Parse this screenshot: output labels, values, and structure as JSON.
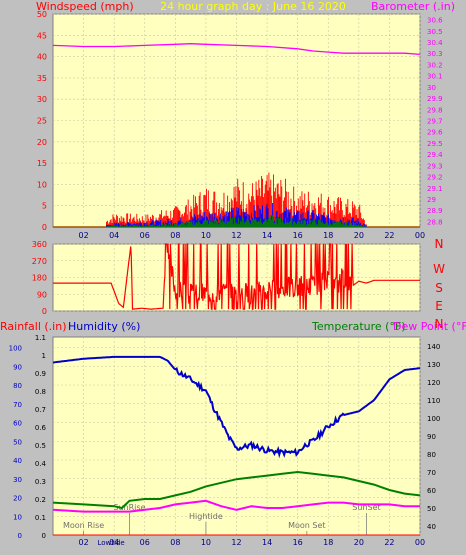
{
  "title": "24 hour graph day : June 16 2020",
  "colors": {
    "background": "#c0c0c0",
    "plot_bg": "#ffffc0",
    "grid": "#c8c8a0",
    "wind_avg": "#ff0000",
    "wind_mid": "#0000ff",
    "wind_low": "#008000",
    "barometer": "#ff00ff",
    "direction": "#ff0000",
    "humidity": "#0000c8",
    "temperature": "#008000",
    "dewpoint": "#ff00ff",
    "rain": "#ff0000",
    "markers": "#808080"
  },
  "chart_data": [
    {
      "type": "line",
      "name": "wind-barometer",
      "left_label": "Windspeed (mph)",
      "right_label": "Barometer (.in)",
      "x_ticks": [
        "02",
        "04",
        "06",
        "08",
        "10",
        "12",
        "14",
        "16",
        "18",
        "20",
        "22",
        "00"
      ],
      "y_left_ticks": [
        "0",
        "5",
        "10",
        "15",
        "20",
        "25",
        "30",
        "35",
        "40",
        "45",
        "50"
      ],
      "y_left_range": [
        0,
        50
      ],
      "y_right_ticks": [
        "28.8",
        "28.9",
        "29",
        "29.1",
        "29.2",
        "29.3",
        "29.4",
        "29.5",
        "29.6",
        "29.7",
        "29.8",
        "29.9",
        "30",
        "30.1",
        "30.2",
        "30.3",
        "30.4",
        "30.5",
        "30.6"
      ],
      "y_right_range": [
        28.75,
        30.65
      ],
      "barometer": {
        "x": [
          0,
          2,
          4,
          6,
          8,
          9,
          10,
          12,
          14,
          16,
          17,
          18,
          19,
          20,
          22,
          23,
          24
        ],
        "y": [
          30.37,
          30.36,
          30.36,
          30.37,
          30.38,
          30.385,
          30.38,
          30.37,
          30.36,
          30.34,
          30.32,
          30.31,
          30.3,
          30.3,
          30.3,
          30.3,
          30.29
        ]
      },
      "wind_envelope": {
        "x": [
          3.5,
          4,
          6,
          8,
          9,
          10,
          11,
          12,
          13,
          14,
          15,
          16,
          17,
          18,
          19,
          20,
          20.5
        ],
        "gust_max": [
          2,
          3.5,
          3,
          5,
          7,
          10,
          9,
          12,
          11,
          13,
          12,
          9,
          9,
          8,
          7,
          6,
          1
        ],
        "mid_max": [
          0.5,
          1,
          1.5,
          2,
          3,
          4,
          4,
          5,
          5,
          6,
          5,
          4,
          4,
          3,
          3,
          2,
          0.5
        ],
        "low_max": [
          0.2,
          0.4,
          0.6,
          1,
          1.5,
          2,
          2,
          2.5,
          2.5,
          3,
          2.5,
          2,
          2,
          1.5,
          1.5,
          1,
          0.2
        ]
      }
    },
    {
      "type": "line",
      "name": "wind-direction",
      "left_ticks": [
        "360",
        "270",
        "180",
        "90",
        "0"
      ],
      "y_range": [
        0,
        360
      ],
      "right_labels": [
        "N",
        "W",
        "S",
        "E",
        "N"
      ],
      "series": {
        "x": [
          0,
          1,
          2,
          3,
          3.8,
          4.3,
          4.6,
          5.1,
          5.2,
          5.8,
          6.4,
          7.2,
          7.4,
          8,
          9,
          10,
          11,
          12,
          13,
          14,
          15,
          16,
          17,
          18,
          18.6,
          19,
          19.5,
          20,
          20.5,
          21,
          22,
          23,
          24
        ],
        "y": [
          150,
          150,
          150,
          150,
          150,
          40,
          20,
          360,
          10,
          15,
          10,
          15,
          360,
          120,
          90,
          100,
          110,
          100,
          95,
          110,
          130,
          130,
          140,
          160,
          140,
          190,
          130,
          160,
          150,
          165,
          165,
          165,
          165
        ]
      }
    },
    {
      "type": "line",
      "name": "climate",
      "left_outer_label": "Rainfall (.in)",
      "left_inner_label": "Humidity (%)",
      "right_label_temp": "Temperature (°F)",
      "right_label_dew": "Dew Point (°F)",
      "rain_ticks": [
        "0",
        "0.1",
        "0.2",
        "0.3",
        "0.4",
        "0.5",
        "0.6",
        "0.7",
        "0.8",
        "0.9",
        "1",
        "1.1"
      ],
      "humidity_ticks": [
        "0",
        "10",
        "20",
        "30",
        "40",
        "50",
        "60",
        "70",
        "80",
        "90",
        "100"
      ],
      "temp_ticks": [
        "40",
        "50",
        "60",
        "70",
        "80",
        "90",
        "100",
        "110",
        "120",
        "130",
        "140"
      ],
      "temp_range": [
        35,
        145
      ],
      "humidity_range": [
        0,
        105.6
      ],
      "x_ticks": [
        "02",
        "04",
        "06",
        "08",
        "10",
        "12",
        "14",
        "16",
        "18",
        "20",
        "22",
        "00"
      ],
      "humidity": {
        "x": [
          0,
          2,
          4,
          6,
          7,
          7.5,
          8,
          9,
          10,
          10.5,
          11,
          11.5,
          12,
          13,
          14,
          15,
          16,
          16.5,
          17,
          18,
          19,
          20,
          21,
          22,
          23,
          24
        ],
        "y": [
          92,
          94,
          95,
          95,
          95,
          93,
          88,
          83,
          77,
          68,
          60,
          52,
          46,
          48,
          45,
          44,
          44,
          48,
          50,
          58,
          64,
          66,
          72,
          83,
          88,
          89
        ]
      },
      "temperature": {
        "x": [
          0,
          2,
          4,
          4.5,
          5,
          6,
          7,
          8,
          9,
          10,
          11,
          12,
          13,
          14,
          15,
          16,
          17,
          18,
          19,
          20,
          21,
          22,
          23,
          24
        ],
        "y": [
          53,
          52,
          51,
          50,
          54,
          55,
          55,
          57,
          59,
          62,
          64,
          66,
          67,
          68,
          69,
          70,
          69,
          68,
          67,
          65,
          63,
          60,
          58,
          57
        ]
      },
      "dewpoint": {
        "x": [
          0,
          2,
          4,
          5,
          6,
          7,
          8,
          9,
          10,
          11,
          12,
          13,
          14,
          15,
          16,
          17,
          18,
          19,
          20,
          21,
          22,
          23,
          24
        ],
        "y": [
          49,
          48,
          48,
          48,
          49,
          50,
          52,
          53,
          54,
          51,
          49,
          51,
          50,
          50,
          51,
          52,
          53,
          53,
          52,
          52,
          52,
          51,
          51
        ]
      },
      "rain": {
        "x": [
          0,
          24
        ],
        "y": [
          0,
          0
        ]
      },
      "events": [
        {
          "label": "Moon Rise",
          "x": 2.0
        },
        {
          "label": "SunRise",
          "x": 5.0
        },
        {
          "label": "Hightide",
          "x": 10.0
        },
        {
          "label": "Moon Set",
          "x": 16.6
        },
        {
          "label": "SunSet",
          "x": 20.5
        },
        {
          "label": "Lowtide",
          "x": 3.8
        }
      ]
    }
  ]
}
